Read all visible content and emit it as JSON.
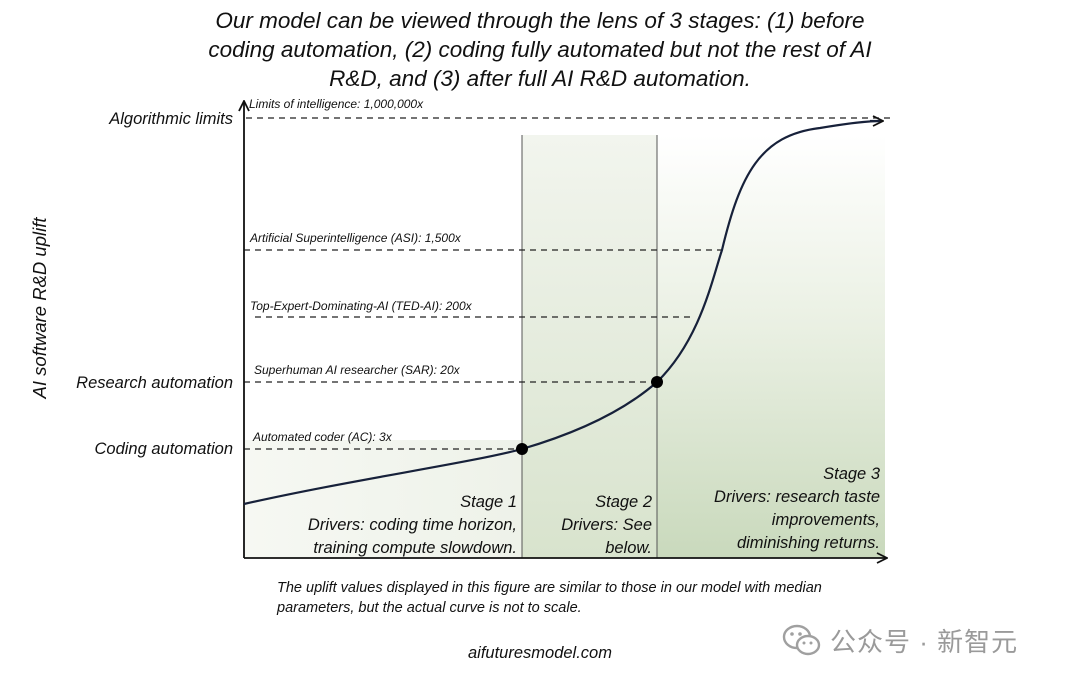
{
  "title_lines": [
    "Our model can be viewed through the lens of 3 stages: (1) before",
    "coding automation, (2) coding fully automated but not the rest of AI",
    "R&D, and (3) after full AI R&D automation."
  ],
  "y_axis_label": "AI software R&D uplift",
  "left_labels": {
    "algorithmic_limits": "Algorithmic limits",
    "research_automation": "Research automation",
    "coding_automation": "Coding automation"
  },
  "milestones": {
    "limits": "Limits of intelligence: 1,000,000x",
    "asi": "Artificial Superintelligence (ASI): 1,500x",
    "ted_ai": "Top-Expert-Dominating-AI (TED-AI): 200x",
    "sar": "Superhuman AI researcher (SAR): 20x",
    "ac": "Automated coder (AC): 3x"
  },
  "stages": {
    "stage1": [
      "Stage 1",
      "Drivers: coding time horizon,",
      "training compute slowdown."
    ],
    "stage2": [
      "Stage 2",
      "Drivers: See",
      "below."
    ],
    "stage3": [
      "Stage 3",
      "Drivers: research taste",
      "improvements,",
      "diminishing returns."
    ]
  },
  "footnote_lines": [
    "The uplift values displayed in this figure are similar to those in our model with median",
    "parameters, but the actual curve is not to scale."
  ],
  "source": "aifuturesmodel.com",
  "watermark": "公众号 · 新智元",
  "colors": {
    "ink": "#111111",
    "stage2_shade": "#dfe7d6",
    "stage3_shade": "#c9d9bc"
  }
}
